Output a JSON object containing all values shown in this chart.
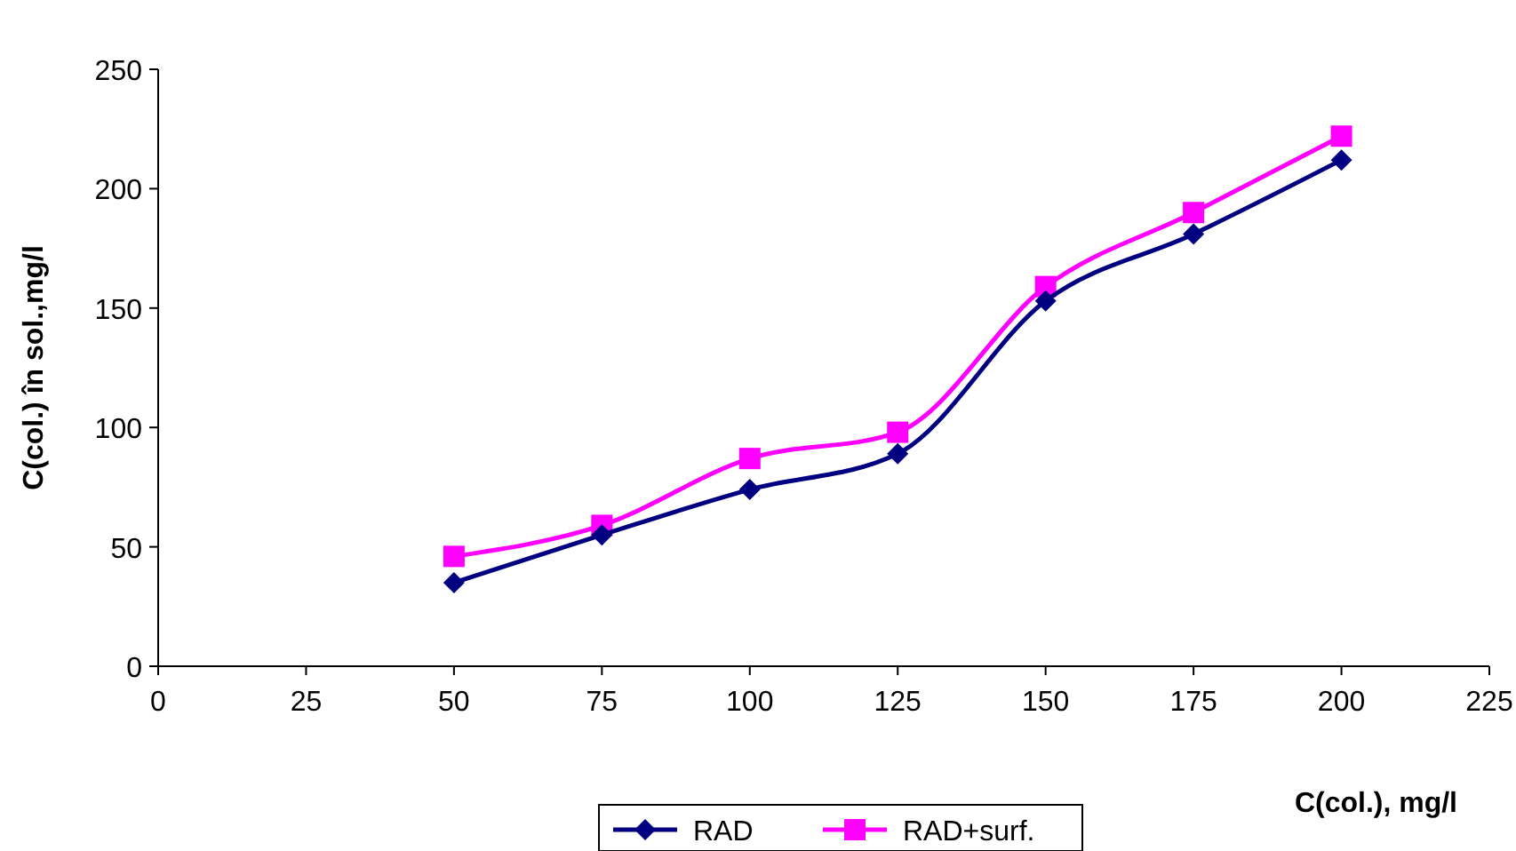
{
  "chart_data": {
    "type": "line",
    "xlabel": "C(col.), mg/l",
    "ylabel": "C(col.) în sol.,mg/l",
    "x": [
      50,
      75,
      100,
      125,
      150,
      175,
      200
    ],
    "series": [
      {
        "name": "RAD",
        "color": "#000080",
        "marker": "diamond",
        "values": [
          35,
          55,
          74,
          89,
          153,
          181,
          212
        ]
      },
      {
        "name": "RAD+surf.",
        "color": "#ff00ff",
        "marker": "square",
        "values": [
          46,
          59,
          87,
          98,
          159,
          190,
          222
        ]
      }
    ],
    "xlim": [
      0,
      225
    ],
    "xticks": [
      0,
      25,
      50,
      75,
      100,
      125,
      150,
      175,
      200,
      225
    ],
    "ylim": [
      0,
      250
    ],
    "yticks": [
      0,
      50,
      100,
      150,
      200,
      250
    ],
    "grid": false,
    "legend": "bottom"
  }
}
